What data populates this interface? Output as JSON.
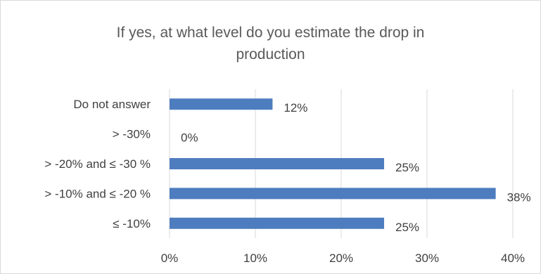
{
  "chart_data": {
    "type": "bar",
    "orientation": "horizontal",
    "title_lines": [
      "If yes, at what level do you estimate the drop in",
      "production"
    ],
    "categories": [
      "Do not answer",
      "> -30%",
      "> -20% and ≤ -30 %",
      "> -10% and ≤ -20 %",
      "≤ -10%"
    ],
    "values": [
      12,
      0,
      25,
      38,
      25
    ],
    "value_labels": [
      "12%",
      "0%",
      "25%",
      "38%",
      "25%"
    ],
    "x_ticks": [
      0,
      10,
      20,
      30,
      40
    ],
    "x_tick_labels": [
      "0%",
      "10%",
      "20%",
      "30%",
      "40%"
    ],
    "xlim": [
      0,
      40
    ],
    "grid": true,
    "legend": false,
    "bar_color": "#4e7dbf",
    "grid_color": "#d9d9d9",
    "text_color": "#404040",
    "title_color": "#595959"
  }
}
